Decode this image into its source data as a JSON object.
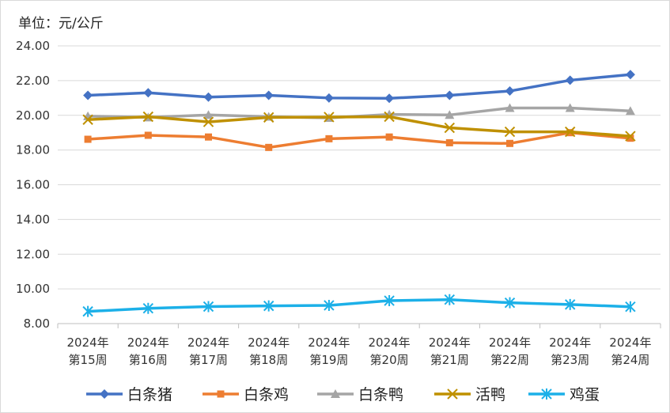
{
  "chart_data": {
    "type": "line",
    "unit_label": "单位：元/公斤",
    "categories": [
      [
        "2024年",
        "第15周"
      ],
      [
        "2024年",
        "第16周"
      ],
      [
        "2024年",
        "第17周"
      ],
      [
        "2024年",
        "第18周"
      ],
      [
        "2024年",
        "第19周"
      ],
      [
        "2024年",
        "第20周"
      ],
      [
        "2024年",
        "第21周"
      ],
      [
        "2024年",
        "第22周"
      ],
      [
        "2024年",
        "第23周"
      ],
      [
        "2024年",
        "第24周"
      ]
    ],
    "ylim": [
      8,
      24
    ],
    "yticks": [
      "8.00",
      "10.00",
      "12.00",
      "14.00",
      "16.00",
      "18.00",
      "20.00",
      "22.00",
      "24.00"
    ],
    "grid": true,
    "legend_position": "bottom",
    "series": [
      {
        "name": "白条猪",
        "color": "#4472C4",
        "marker": "diamond",
        "values": [
          21.15,
          21.3,
          21.05,
          21.15,
          21.0,
          20.98,
          21.15,
          21.4,
          22.02,
          22.35
        ]
      },
      {
        "name": "白条鸡",
        "color": "#ED7D31",
        "marker": "square",
        "values": [
          18.62,
          18.85,
          18.75,
          18.15,
          18.65,
          18.75,
          18.42,
          18.38,
          19.0,
          18.68
        ]
      },
      {
        "name": "白条鸭",
        "color": "#A5A5A5",
        "marker": "triangle",
        "values": [
          19.95,
          19.88,
          20.02,
          19.92,
          19.85,
          20.05,
          20.02,
          20.42,
          20.42,
          20.25
        ]
      },
      {
        "name": "活鸭",
        "color": "#BF9000",
        "marker": "x",
        "values": [
          19.75,
          19.92,
          19.62,
          19.88,
          19.9,
          19.92,
          19.28,
          19.05,
          19.05,
          18.8
        ]
      },
      {
        "name": "鸡蛋",
        "color": "#1CB0E8",
        "marker": "asterisk",
        "values": [
          8.7,
          8.88,
          8.98,
          9.02,
          9.05,
          9.32,
          9.38,
          9.2,
          9.1,
          8.97
        ]
      }
    ]
  }
}
